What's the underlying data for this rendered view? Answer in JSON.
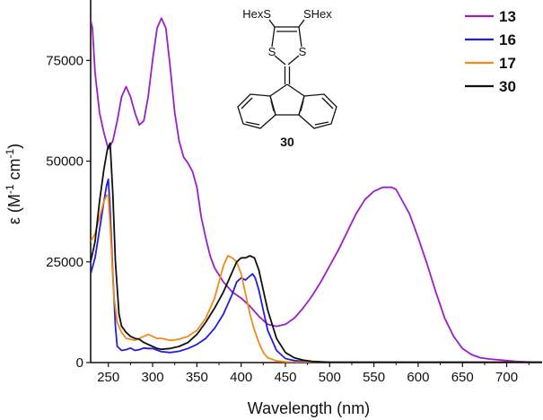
{
  "chart_data": {
    "type": "line",
    "title": "",
    "xlabel": "Wavelength (nm)",
    "ylabel_parts": [
      "ε (M",
      "-1",
      " cm",
      "-1",
      ")"
    ],
    "xlim": [
      230,
      740
    ],
    "ylim": [
      0,
      90000
    ],
    "xticks": [
      250,
      300,
      350,
      400,
      450,
      500,
      550,
      600,
      650,
      700
    ],
    "yticks": [
      0,
      25000,
      50000,
      75000
    ],
    "xtick_labels": [
      "250",
      "300",
      "350",
      "400",
      "450",
      "500",
      "550",
      "600",
      "650",
      "700"
    ],
    "ytick_labels": [
      "0",
      "25000",
      "50000",
      "75000"
    ],
    "legend_position": "top-right",
    "series": [
      {
        "name": "13",
        "color": "#9b1fc9",
        "x": [
          230,
          232,
          235,
          240,
          245,
          250,
          255,
          260,
          265,
          270,
          275,
          280,
          285,
          290,
          295,
          300,
          305,
          310,
          315,
          320,
          325,
          330,
          335,
          340,
          345,
          350,
          355,
          360,
          365,
          370,
          380,
          390,
          400,
          410,
          420,
          430,
          440,
          450,
          460,
          470,
          480,
          490,
          500,
          510,
          520,
          530,
          540,
          550,
          560,
          570,
          575,
          580,
          590,
          600,
          610,
          620,
          630,
          640,
          650,
          660,
          670,
          680,
          690,
          700,
          710,
          720,
          740
        ],
        "y": [
          85000,
          83000,
          72000,
          62000,
          57000,
          53000,
          55000,
          60000,
          66000,
          68500,
          66000,
          62000,
          59000,
          60000,
          66000,
          75000,
          83000,
          85500,
          83000,
          73000,
          62000,
          55000,
          51000,
          49500,
          47500,
          43500,
          36000,
          31000,
          26500,
          23500,
          20000,
          17500,
          16000,
          14000,
          11500,
          9500,
          9000,
          9500,
          11000,
          13500,
          16500,
          20000,
          24000,
          28000,
          32500,
          37000,
          40500,
          42500,
          43500,
          43500,
          43000,
          41000,
          37000,
          31000,
          24500,
          17500,
          11000,
          6500,
          3500,
          2000,
          1200,
          900,
          700,
          500,
          300,
          200,
          100
        ]
      },
      {
        "name": "16",
        "color": "#1f1fe0",
        "x": [
          230,
          235,
          240,
          245,
          248,
          250,
          252,
          255,
          258,
          260,
          265,
          270,
          275,
          280,
          285,
          290,
          295,
          300,
          310,
          320,
          330,
          340,
          350,
          360,
          370,
          380,
          390,
          395,
          400,
          405,
          410,
          413,
          416,
          420,
          425,
          430,
          440,
          450,
          460,
          470,
          480,
          500,
          740
        ],
        "y": [
          22000,
          26000,
          33000,
          40000,
          44000,
          45500,
          38000,
          22000,
          9000,
          4000,
          3000,
          3200,
          3600,
          3000,
          3200,
          3600,
          3500,
          3500,
          2700,
          2500,
          2800,
          3500,
          4500,
          6000,
          8500,
          12000,
          17000,
          20000,
          21000,
          20500,
          21500,
          22000,
          21000,
          18000,
          13000,
          8000,
          3000,
          1000,
          500,
          300,
          200,
          100,
          100
        ]
      },
      {
        "name": "17",
        "color": "#f08a1a",
        "x": [
          230,
          235,
          240,
          245,
          248,
          250,
          253,
          256,
          260,
          265,
          270,
          275,
          280,
          285,
          290,
          295,
          300,
          305,
          310,
          320,
          330,
          340,
          350,
          360,
          370,
          375,
          380,
          385,
          390,
          395,
          400,
          405,
          410,
          415,
          420,
          425,
          430,
          440,
          450,
          460,
          500,
          740
        ],
        "y": [
          30000,
          32000,
          36000,
          40000,
          41500,
          41500,
          30000,
          17000,
          10000,
          7500,
          6000,
          5800,
          5500,
          6000,
          6500,
          7000,
          6500,
          6000,
          6000,
          5500,
          5800,
          6500,
          8000,
          11000,
          16000,
          20000,
          24000,
          26500,
          26000,
          25000,
          22000,
          17000,
          12000,
          8000,
          5000,
          2500,
          1200,
          400,
          200,
          100,
          100,
          100
        ]
      },
      {
        "name": "30",
        "color": "#111111",
        "x": [
          230,
          235,
          240,
          245,
          249,
          252,
          255,
          258,
          262,
          265,
          270,
          275,
          280,
          285,
          290,
          295,
          300,
          305,
          310,
          320,
          330,
          340,
          350,
          360,
          370,
          380,
          390,
          395,
          400,
          405,
          410,
          415,
          420,
          425,
          430,
          440,
          450,
          460,
          470,
          480,
          500,
          740
        ],
        "y": [
          25000,
          30000,
          40000,
          48000,
          53000,
          54500,
          42000,
          25000,
          12000,
          9000,
          7500,
          6500,
          6000,
          5800,
          5000,
          4500,
          4000,
          3500,
          3300,
          3500,
          4000,
          5000,
          7000,
          10000,
          13500,
          17500,
          22500,
          25000,
          26000,
          26000,
          26500,
          26000,
          23000,
          18000,
          13000,
          6000,
          2500,
          1200,
          600,
          300,
          100,
          100
        ]
      }
    ]
  },
  "molecule": {
    "substituent_left": "HexS",
    "substituent_right": "SHex",
    "ring_atom_left": "S",
    "ring_atom_right": "S",
    "compound_label": "30"
  }
}
